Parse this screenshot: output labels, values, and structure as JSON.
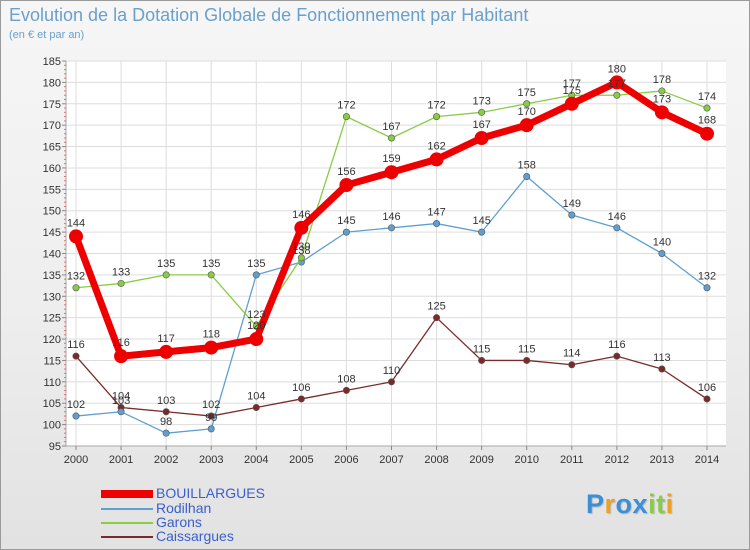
{
  "chart_data": {
    "type": "line",
    "title": "Evolution de la Dotation Globale de Fonctionnement par Habitant",
    "subtitle": "(en € et par an)",
    "xlabel": "",
    "ylabel": "",
    "x": [
      "2000",
      "2001",
      "2002",
      "2003",
      "2004",
      "2005",
      "2006",
      "2007",
      "2008",
      "2009",
      "2010",
      "2011",
      "2012",
      "2013",
      "2014"
    ],
    "ylim": [
      95,
      185
    ],
    "ytick_step": 5,
    "grid": true,
    "legend_position": "bottom-left",
    "series": [
      {
        "name": "BOUILLARGUES",
        "color": "#ee0000",
        "values": [
          144,
          116,
          117,
          118,
          120,
          146,
          156,
          159,
          162,
          167,
          170,
          175,
          180,
          173,
          168
        ]
      },
      {
        "name": "Rodilhan",
        "color": "#5f9fd0",
        "values": [
          102,
          103,
          98,
          99,
          135,
          138,
          145,
          146,
          147,
          145,
          158,
          149,
          146,
          140,
          132
        ]
      },
      {
        "name": "Garons",
        "color": "#88cc44",
        "values": [
          132,
          133,
          135,
          135,
          123,
          139,
          172,
          167,
          172,
          173,
          175,
          177,
          177,
          178,
          174
        ]
      },
      {
        "name": "Caissargues",
        "color": "#7a2a2a",
        "values": [
          116,
          104,
          103,
          102,
          104,
          106,
          108,
          110,
          125,
          115,
          115,
          114,
          116,
          113,
          106
        ]
      }
    ]
  },
  "logo": {
    "letters": [
      "P",
      "r",
      "o",
      "x",
      "i",
      "t",
      "i"
    ],
    "colors": [
      "#3b8fd8",
      "#f0a020",
      "#3b8fd8",
      "#3b8fd8",
      "#88cc44",
      "#88cc44",
      "#f0a020"
    ]
  }
}
